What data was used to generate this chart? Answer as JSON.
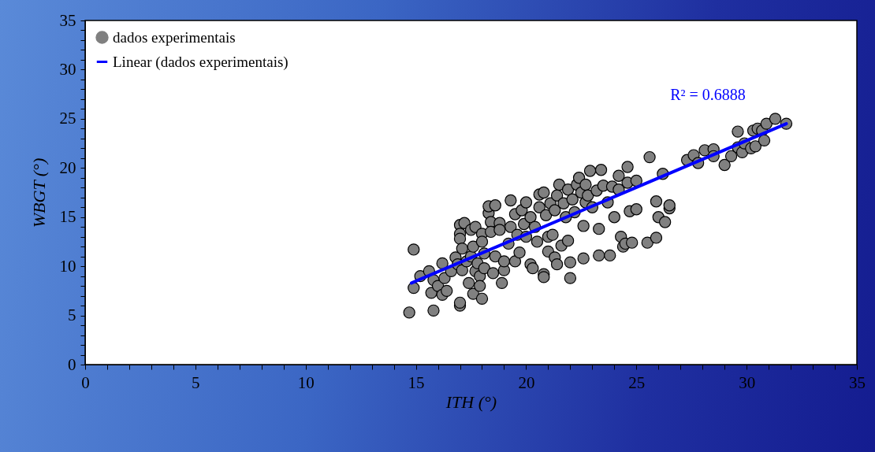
{
  "chart_data": {
    "type": "scatter",
    "xlabel": "ITH (°)",
    "ylabel": "WBGT (°)",
    "xlim": [
      0,
      35
    ],
    "ylim": [
      0,
      35
    ],
    "xticks": [
      0,
      {
        "value": 1,
        "label": null
      },
      {
        "value": 2,
        "label": null
      },
      {
        "value": 3,
        "label": null
      },
      {
        "value": 4,
        "label": null
      },
      5,
      {
        "value": 6,
        "label": null
      },
      {
        "value": 7,
        "label": null
      },
      {
        "value": 8,
        "label": null
      },
      {
        "value": 9,
        "label": null
      },
      10,
      {
        "value": 11,
        "label": null
      },
      {
        "value": 12,
        "label": null
      },
      {
        "value": 13,
        "label": null
      },
      {
        "value": 14,
        "label": null
      },
      15,
      {
        "value": 16,
        "label": null
      },
      {
        "value": 17,
        "label": null
      },
      {
        "value": 18,
        "label": null
      },
      {
        "value": 19,
        "label": null
      },
      20,
      {
        "value": 21,
        "label": null
      },
      {
        "value": 22,
        "label": null
      },
      {
        "value": 23,
        "label": null
      },
      {
        "value": 24,
        "label": null
      },
      25,
      {
        "value": 26,
        "label": null
      },
      {
        "value": 27,
        "label": null
      },
      {
        "value": 28,
        "label": null
      },
      {
        "value": 29,
        "label": null
      },
      30,
      {
        "value": 31,
        "label": null
      },
      {
        "value": 32,
        "label": null
      },
      {
        "value": 33,
        "label": null
      },
      {
        "value": 34,
        "label": null
      },
      35
    ],
    "yticks": [
      0,
      {
        "value": 1,
        "label": null
      },
      {
        "value": 2,
        "label": null
      },
      {
        "value": 3,
        "label": null
      },
      {
        "value": 4,
        "label": null
      },
      5,
      {
        "value": 6,
        "label": null
      },
      {
        "value": 7,
        "label": null
      },
      {
        "value": 8,
        "label": null
      },
      {
        "value": 9,
        "label": null
      },
      10,
      {
        "value": 11,
        "label": null
      },
      {
        "value": 12,
        "label": null
      },
      {
        "value": 13,
        "label": null
      },
      {
        "value": 14,
        "label": null
      },
      15,
      {
        "value": 16,
        "label": null
      },
      {
        "value": 17,
        "label": null
      },
      {
        "value": 18,
        "label": null
      },
      {
        "value": 19,
        "label": null
      },
      20,
      {
        "value": 21,
        "label": null
      },
      {
        "value": 22,
        "label": null
      },
      {
        "value": 23,
        "label": null
      },
      {
        "value": 24,
        "label": null
      },
      25,
      {
        "value": 26,
        "label": null
      },
      {
        "value": 27,
        "label": null
      },
      {
        "value": 28,
        "label": null
      },
      {
        "value": 29,
        "label": null
      },
      30,
      {
        "value": 31,
        "label": null
      },
      {
        "value": 32,
        "label": null
      },
      {
        "value": 33,
        "label": null
      },
      {
        "value": 34,
        "label": null
      },
      35
    ],
    "grid": false,
    "legend": "top left",
    "marker": "circle",
    "annotations": [
      "R² = 0.6888"
    ],
    "series": [
      {
        "name": "dados experimentais",
        "color": "#808080",
        "x": [
          14.7,
          14.9,
          14.9,
          15.2,
          15.6,
          15.7,
          15.8,
          15.8,
          16.0,
          16.2,
          16.2,
          16.3,
          16.4,
          16.6,
          16.8,
          16.9,
          17.0,
          17.0,
          17.0,
          17.0,
          17.0,
          17.1,
          17.1,
          17.2,
          17.3,
          17.4,
          17.5,
          17.5,
          17.6,
          17.6,
          17.7,
          17.7,
          17.8,
          17.9,
          17.9,
          18.0,
          18.0,
          18.0,
          18.1,
          18.1,
          18.3,
          18.3,
          18.4,
          18.4,
          18.5,
          18.6,
          18.6,
          18.8,
          18.8,
          18.9,
          19.0,
          19.0,
          19.2,
          19.3,
          19.3,
          19.5,
          19.5,
          19.6,
          19.7,
          19.8,
          19.9,
          20.0,
          20.0,
          20.2,
          20.2,
          20.3,
          20.4,
          20.5,
          20.6,
          20.6,
          20.8,
          20.8,
          20.8,
          20.9,
          21.0,
          21.0,
          21.1,
          21.2,
          21.3,
          21.3,
          21.4,
          21.4,
          21.5,
          21.6,
          21.7,
          21.8,
          21.9,
          21.9,
          22.0,
          22.0,
          22.1,
          22.2,
          22.3,
          22.4,
          22.5,
          22.6,
          22.6,
          22.7,
          22.7,
          22.8,
          22.9,
          23.0,
          23.2,
          23.3,
          23.3,
          23.4,
          23.5,
          23.7,
          23.8,
          23.9,
          24.0,
          24.2,
          24.2,
          24.3,
          24.4,
          24.5,
          24.6,
          24.6,
          24.7,
          24.8,
          25.0,
          25.0,
          25.5,
          25.6,
          25.9,
          25.9,
          26.0,
          26.2,
          26.3,
          26.5,
          26.5,
          27.3,
          27.6,
          27.8,
          28.1,
          28.5,
          28.5,
          29.0,
          29.3,
          29.6,
          29.6,
          29.8,
          29.9,
          30.2,
          30.3,
          30.4,
          30.5,
          30.7,
          30.8,
          30.9,
          31.3,
          31.8
        ],
        "values": [
          5.3,
          11.7,
          7.8,
          9.0,
          9.5,
          7.3,
          5.5,
          8.6,
          8.0,
          7.1,
          10.3,
          8.8,
          7.5,
          9.5,
          10.9,
          10.2,
          6.0,
          6.3,
          14.2,
          13.3,
          12.8,
          11.8,
          9.6,
          14.4,
          10.5,
          8.3,
          13.7,
          11.0,
          7.2,
          12.0,
          9.5,
          14.0,
          10.3,
          9.0,
          8.0,
          6.7,
          13.3,
          12.5,
          11.3,
          9.8,
          15.4,
          16.1,
          14.5,
          13.5,
          9.3,
          16.2,
          11.0,
          14.4,
          13.7,
          8.3,
          9.6,
          10.5,
          12.3,
          14.0,
          16.7,
          15.3,
          10.5,
          13.2,
          11.4,
          15.7,
          14.3,
          16.5,
          13.0,
          15.0,
          10.2,
          9.8,
          14.0,
          12.5,
          16.0,
          17.3,
          17.5,
          9.2,
          8.9,
          15.2,
          13.0,
          11.5,
          16.4,
          13.2,
          10.9,
          15.7,
          17.2,
          10.2,
          18.3,
          12.1,
          16.4,
          15.0,
          17.8,
          12.6,
          8.8,
          10.4,
          16.8,
          15.5,
          18.3,
          19.0,
          17.5,
          14.1,
          10.8,
          16.5,
          18.3,
          17.2,
          19.7,
          16.0,
          17.7,
          13.8,
          11.1,
          19.8,
          18.2,
          16.5,
          11.1,
          18.1,
          15.0,
          17.8,
          19.2,
          13.0,
          12.0,
          12.3,
          18.5,
          20.1,
          15.6,
          12.4,
          15.8,
          18.7,
          12.4,
          21.1,
          16.6,
          12.9,
          15.0,
          19.4,
          14.5,
          15.9,
          16.2,
          20.8,
          21.3,
          20.5,
          21.8,
          21.9,
          21.2,
          20.3,
          21.2,
          23.7,
          22.1,
          21.6,
          22.5,
          22.0,
          23.8,
          22.2,
          24.0,
          23.8,
          22.8,
          24.5,
          25.0,
          24.5
        ]
      },
      {
        "name": "Linear (dados experimentais)",
        "type": "line",
        "color": "#0000ff",
        "line_style": "solid",
        "marker": "none",
        "x": [
          14.8,
          31.8
        ],
        "values": [
          8.3,
          24.5
        ]
      }
    ]
  }
}
